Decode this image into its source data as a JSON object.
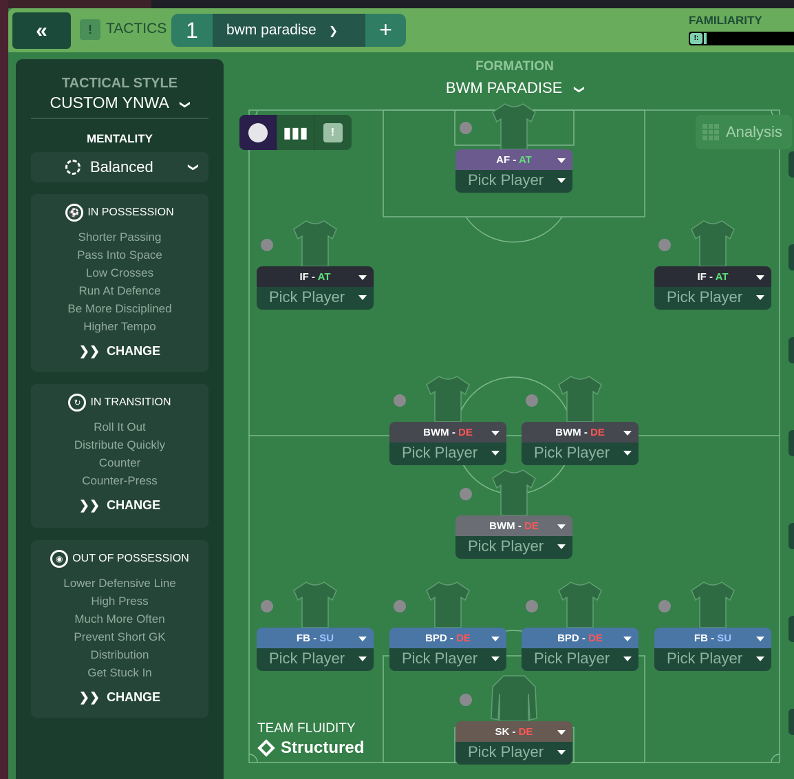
{
  "topbar": {
    "back_icon": "double-chevron-left-icon",
    "tactics_label": "TACTICS",
    "tactic_number": "1",
    "tactic_name": "bwm paradise",
    "add_label": "+",
    "familiarity_label": "FAMILIARITY",
    "familiarity_level": 0.03
  },
  "sidebar": {
    "tactical_style_label": "TACTICAL STYLE",
    "tactical_style_value": "CUSTOM YNWA",
    "mentality_label": "MENTALITY",
    "mentality_value": "Balanced",
    "sections": [
      {
        "title": "IN POSSESSION",
        "items": [
          "Shorter Passing",
          "Pass Into Space",
          "Low Crosses",
          "Run At Defence",
          "Be More Disciplined",
          "Higher Tempo"
        ],
        "change": "CHANGE"
      },
      {
        "title": "IN TRANSITION",
        "items": [
          "Roll It Out",
          "Distribute Quickly",
          "Counter",
          "Counter-Press"
        ],
        "change": "CHANGE"
      },
      {
        "title": "OUT OF POSSESSION",
        "items": [
          "Lower Defensive Line",
          "High Press",
          "Much More Often",
          "Prevent Short GK",
          "Distribution",
          "Get Stuck In"
        ],
        "change": "CHANGE"
      }
    ]
  },
  "formation": {
    "label": "FORMATION",
    "name": "BWM PARADISE"
  },
  "analysis_label": "Analysis",
  "fluidity": {
    "label": "TEAM FLUIDITY",
    "value": "Structured"
  },
  "colors": {
    "at": "#5ee07a",
    "de": "#ff5656",
    "su": "#9ec4ff",
    "pitch": "#357f48",
    "topbar": "#69ac5b"
  },
  "slots": [
    {
      "role": "AF",
      "duty": "AT",
      "pick": "Pick Player",
      "header": "#6b5a8e"
    },
    {
      "role": "IF",
      "duty": "AT",
      "pick": "Pick Player",
      "header": "#2a2d35"
    },
    {
      "role": "IF",
      "duty": "AT",
      "pick": "Pick Player",
      "header": "#2a2d35"
    },
    {
      "role": "BWM",
      "duty": "DE",
      "pick": "Pick Player",
      "header": "#45484f"
    },
    {
      "role": "BWM",
      "duty": "DE",
      "pick": "Pick Player",
      "header": "#45484f"
    },
    {
      "role": "BWM",
      "duty": "DE",
      "pick": "Pick Player",
      "header": "#6a6e74"
    },
    {
      "role": "FB",
      "duty": "SU",
      "pick": "Pick Player",
      "header": "#4a76a6"
    },
    {
      "role": "BPD",
      "duty": "DE",
      "pick": "Pick Player",
      "header": "#4a76a6"
    },
    {
      "role": "BPD",
      "duty": "DE",
      "pick": "Pick Player",
      "header": "#4a76a6"
    },
    {
      "role": "FB",
      "duty": "SU",
      "pick": "Pick Player",
      "header": "#4a76a6"
    },
    {
      "role": "SK",
      "duty": "DE",
      "pick": "Pick Player",
      "header": "#665a53"
    }
  ]
}
